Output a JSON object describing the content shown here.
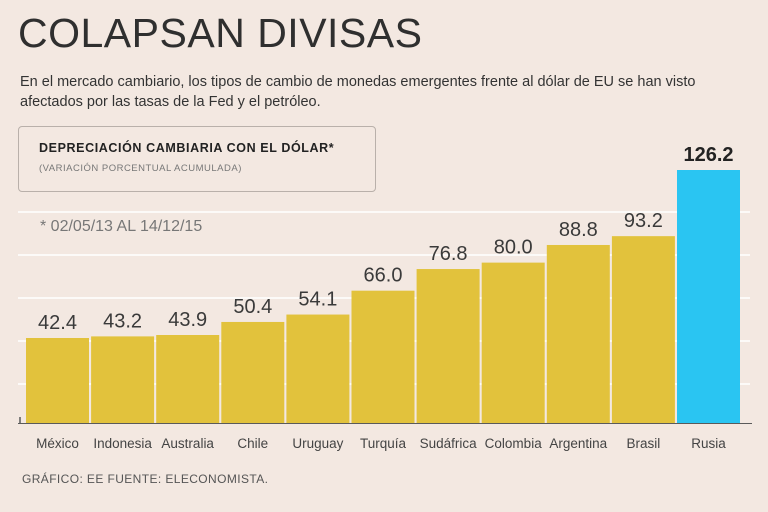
{
  "title": "COLAPSAN DIVISAS",
  "subtitle": "En el mercado cambiario, los tipos de cambio de monedas emergentes frente al dólar de EU se han visto afectados por las tasas de la Fed y el petróleo.",
  "legend": {
    "title": "DEPRECIACIÓN CAMBIARIA CON EL DÓLAR*",
    "subtitle": "(VARIACIÓN PORCENTUAL ACUMULADA)"
  },
  "period_note": "* 02/05/13 AL 14/12/15",
  "footer": "GRÁFICO: EE  FUENTE: ELECONOMISTA.",
  "colors": {
    "background": "#f3e8e1",
    "bar": "#e2c23c",
    "highlight": "#2ac5f2",
    "grid": "#ffffff"
  },
  "chart_data": {
    "type": "bar",
    "title": "DEPRECIACIÓN CAMBIARIA CON EL DÓLAR*",
    "xlabel": "",
    "ylabel": "(VARIACIÓN PORCENTUAL ACUMULADA)",
    "categories": [
      "México",
      "Indonesia",
      "Australia",
      "Chile",
      "Uruguay",
      "Turquía",
      "Sudáfrica",
      "Colombia",
      "Argentina",
      "Brasil",
      "Rusia"
    ],
    "values": [
      42.4,
      43.2,
      43.9,
      50.4,
      54.1,
      66.0,
      76.8,
      80.0,
      88.8,
      93.2,
      126.2
    ],
    "value_labels": [
      "42.4",
      "43.2",
      "43.9",
      "50.4",
      "54.1",
      "66.0",
      "76.8",
      "80.0",
      "88.8",
      "93.2",
      "126.2"
    ],
    "highlight_index": 10,
    "ylim": [
      0,
      126.2
    ],
    "grid": true
  }
}
